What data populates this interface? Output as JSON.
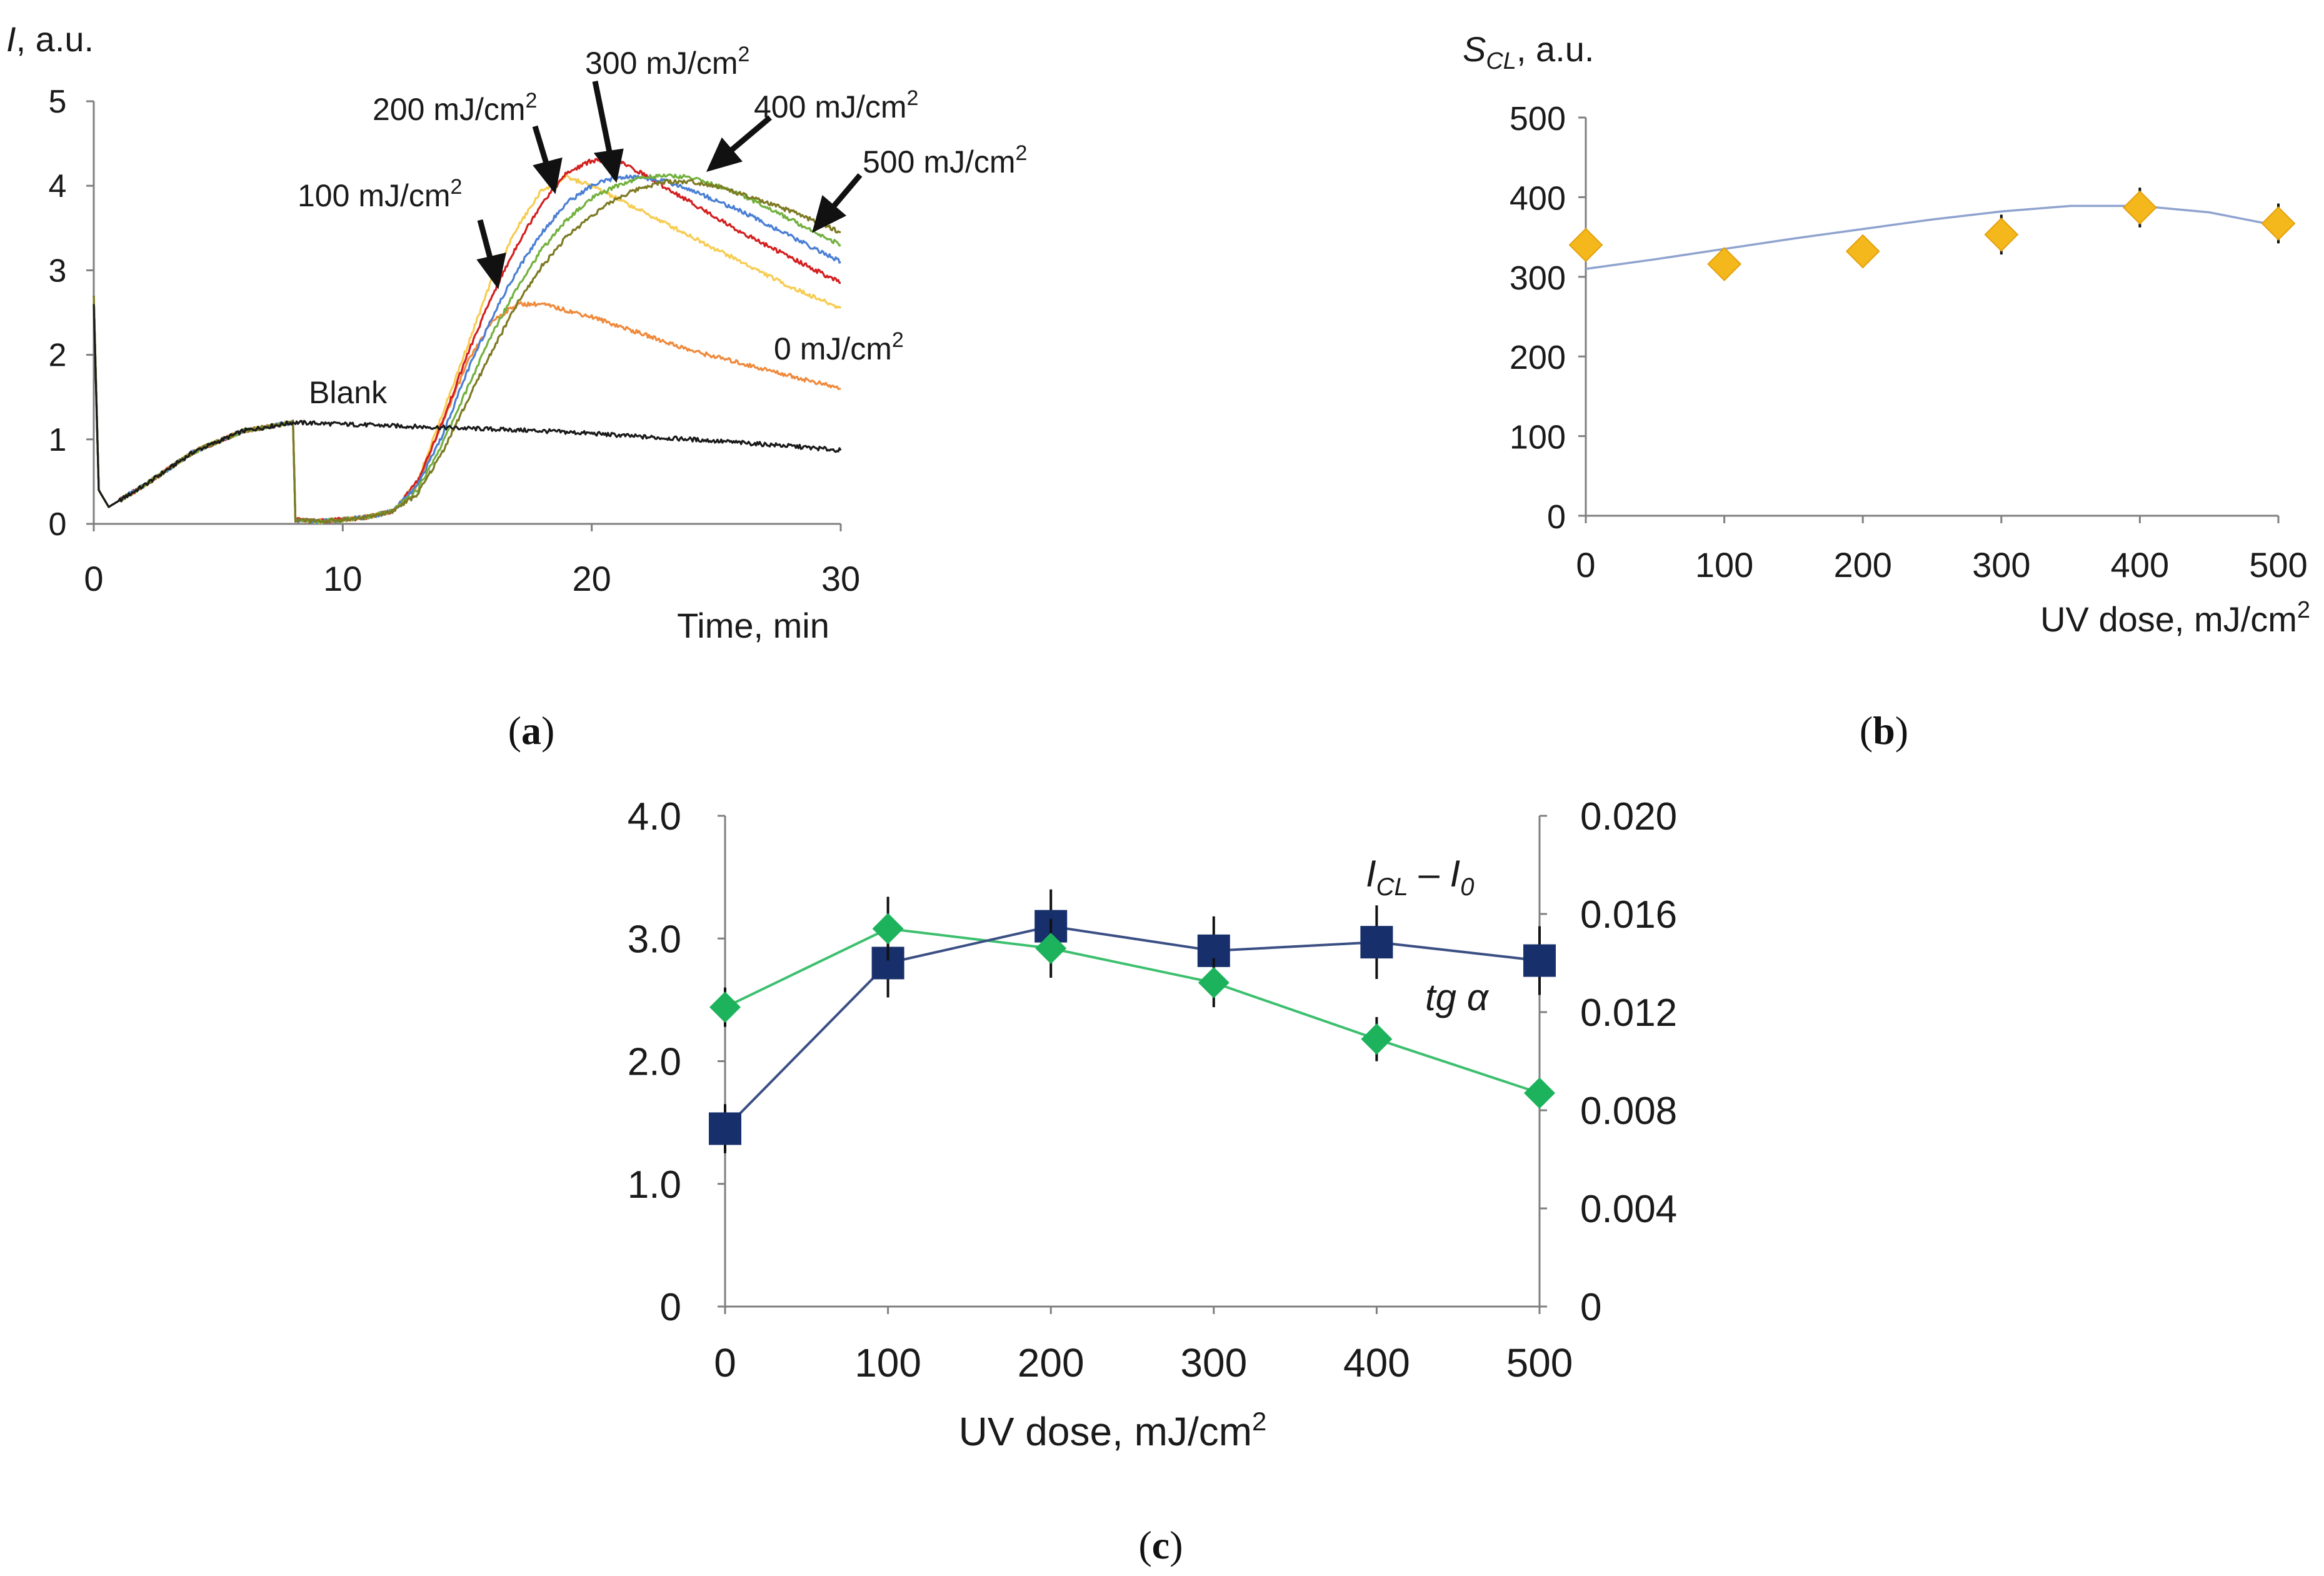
{
  "figure": {
    "colors": {
      "axis": "#7f7f7f",
      "text": "#1a1a1a",
      "orange_marker": "#f5b81c",
      "fit_line": "#8fa3cf",
      "navy_marker": "#172f6b",
      "navy_line": "#3b4f84",
      "green_marker": "#1db35c",
      "green_line": "#3cbf6e",
      "blank": "#1a1a1a",
      "dose_0": "#ef8a3c",
      "dose_100": "#f7cc52",
      "dose_200": "#d41f1f",
      "dose_300": "#4a7fd4",
      "dose_400": "#72b13e",
      "dose_500": "#7d7a22"
    }
  },
  "chart_data": [
    {
      "id": "a",
      "caption": {
        "open": "(",
        "letter": "a",
        "close": ")"
      },
      "type": "line",
      "ylabel": {
        "symbol": "I",
        "rest": ", a.u."
      },
      "xlabel": "Time, min",
      "xlim": [
        0,
        30
      ],
      "ylim": [
        0,
        5
      ],
      "xticks": [
        "0",
        "10",
        "20",
        "30"
      ],
      "yticks": [
        "0",
        "1",
        "2",
        "3",
        "4",
        "5"
      ],
      "series": [
        {
          "name": "Blank",
          "color_key": "blank",
          "label": "Blank",
          "x": [
            0,
            0.2,
            0.6,
            2,
            4,
            6,
            8,
            10,
            12,
            14,
            16,
            18,
            20,
            22,
            24,
            26,
            28,
            30
          ],
          "y": [
            2.6,
            0.4,
            0.2,
            0.45,
            0.85,
            1.1,
            1.2,
            1.18,
            1.16,
            1.14,
            1.12,
            1.1,
            1.07,
            1.03,
            1.0,
            0.96,
            0.92,
            0.87
          ]
        },
        {
          "name": "0 mJ/cm2",
          "color_key": "dose_0",
          "label": {
            "value": "0",
            "unit": " mJ/cm",
            "sup": "2"
          },
          "x": [
            0,
            0.2,
            0.6,
            2,
            4,
            6,
            8,
            8.1,
            9,
            10,
            11,
            12,
            13,
            14,
            15,
            16,
            17,
            18,
            20,
            22,
            24,
            26,
            28,
            30
          ],
          "y": [
            2.7,
            0.4,
            0.2,
            0.45,
            0.85,
            1.1,
            1.2,
            0.05,
            0.03,
            0.05,
            0.08,
            0.15,
            0.45,
            1.2,
            1.9,
            2.4,
            2.6,
            2.6,
            2.45,
            2.25,
            2.05,
            1.9,
            1.75,
            1.6
          ]
        },
        {
          "name": "100 mJ/cm2",
          "color_key": "dose_100",
          "label": {
            "value": "100",
            "unit": " mJ/cm",
            "sup": "2"
          },
          "x": [
            0,
            0.2,
            0.6,
            2,
            4,
            6,
            8,
            8.1,
            9,
            10,
            11,
            12,
            13,
            14,
            15,
            16,
            17,
            18,
            19,
            20,
            22,
            24,
            26,
            28,
            30
          ],
          "y": [
            2.7,
            0.4,
            0.2,
            0.45,
            0.85,
            1.1,
            1.2,
            0.05,
            0.03,
            0.05,
            0.08,
            0.15,
            0.5,
            1.3,
            2.1,
            2.9,
            3.5,
            3.95,
            4.1,
            4.0,
            3.7,
            3.4,
            3.1,
            2.8,
            2.55
          ]
        },
        {
          "name": "200 mJ/cm2",
          "color_key": "dose_200",
          "label": {
            "value": "200",
            "unit": " mJ/cm",
            "sup": "2"
          },
          "x": [
            0,
            0.2,
            0.6,
            2,
            4,
            6,
            8,
            8.1,
            9,
            10,
            11,
            12,
            13,
            14,
            15,
            16,
            17,
            18,
            19,
            20,
            21,
            22,
            24,
            26,
            28,
            30
          ],
          "y": [
            2.7,
            0.4,
            0.2,
            0.45,
            0.85,
            1.1,
            1.2,
            0.05,
            0.03,
            0.05,
            0.08,
            0.15,
            0.5,
            1.2,
            2.0,
            2.7,
            3.3,
            3.8,
            4.15,
            4.3,
            4.3,
            4.15,
            3.8,
            3.45,
            3.15,
            2.85
          ]
        },
        {
          "name": "300 mJ/cm2",
          "color_key": "dose_300",
          "label": {
            "value": "300",
            "unit": " mJ/cm",
            "sup": "2"
          },
          "x": [
            0,
            0.2,
            0.6,
            2,
            4,
            6,
            8,
            8.1,
            9,
            10,
            11,
            12,
            13,
            14,
            15,
            16,
            17,
            18,
            19,
            20,
            21,
            22,
            23,
            24,
            26,
            28,
            30
          ],
          "y": [
            2.7,
            0.4,
            0.2,
            0.45,
            0.85,
            1.1,
            1.2,
            0.05,
            0.03,
            0.05,
            0.08,
            0.15,
            0.45,
            1.05,
            1.8,
            2.45,
            3.0,
            3.45,
            3.8,
            4.0,
            4.1,
            4.1,
            4.05,
            3.95,
            3.7,
            3.4,
            3.1
          ]
        },
        {
          "name": "400 mJ/cm2",
          "color_key": "dose_400",
          "label": {
            "value": "400",
            "unit": " mJ/cm",
            "sup": "2"
          },
          "x": [
            0,
            0.2,
            0.6,
            2,
            4,
            6,
            8,
            8.1,
            9,
            10,
            11,
            12,
            13,
            14,
            15,
            16,
            17,
            18,
            19,
            20,
            21,
            22,
            23,
            24,
            25,
            26,
            28,
            30
          ],
          "y": [
            2.7,
            0.4,
            0.2,
            0.45,
            0.85,
            1.1,
            1.2,
            0.05,
            0.03,
            0.05,
            0.08,
            0.15,
            0.4,
            0.95,
            1.6,
            2.25,
            2.8,
            3.25,
            3.6,
            3.85,
            4.0,
            4.1,
            4.12,
            4.1,
            4.0,
            3.9,
            3.6,
            3.3
          ]
        },
        {
          "name": "500 mJ/cm2",
          "color_key": "dose_500",
          "label": {
            "value": "500",
            "unit": " mJ/cm",
            "sup": "2"
          },
          "x": [
            0,
            0.2,
            0.6,
            2,
            4,
            6,
            8,
            8.1,
            9,
            10,
            11,
            12,
            13,
            14,
            15,
            16,
            17,
            18,
            19,
            20,
            21,
            22,
            23,
            24,
            25,
            26,
            28,
            30
          ],
          "y": [
            2.7,
            0.4,
            0.2,
            0.45,
            0.85,
            1.1,
            1.2,
            0.05,
            0.03,
            0.05,
            0.08,
            0.15,
            0.35,
            0.85,
            1.45,
            2.05,
            2.6,
            3.05,
            3.4,
            3.65,
            3.85,
            3.98,
            4.05,
            4.05,
            4.0,
            3.9,
            3.7,
            3.45
          ]
        }
      ]
    },
    {
      "id": "b",
      "caption": {
        "open": "(",
        "letter": "b",
        "close": ")"
      },
      "type": "scatter",
      "ylabel": {
        "symbol": "S",
        "sub": "CL",
        "rest": ", a.u."
      },
      "xlabel": {
        "text": "UV dose, mJ/cm",
        "sup": "2"
      },
      "xlim": [
        0,
        500
      ],
      "ylim": [
        0,
        500
      ],
      "xticks": [
        "0",
        "100",
        "200",
        "300",
        "400",
        "500"
      ],
      "yticks": [
        "0",
        "100",
        "200",
        "300",
        "400",
        "500"
      ],
      "points": {
        "x": [
          0,
          100,
          200,
          300,
          400,
          500
        ],
        "y": [
          340,
          316,
          332,
          353,
          387,
          367
        ],
        "err": [
          20,
          20,
          20,
          25,
          25,
          25
        ]
      },
      "fit": {
        "x": [
          0,
          50,
          100,
          150,
          200,
          250,
          300,
          350,
          400,
          450,
          500
        ],
        "y": [
          310,
          322,
          335,
          348,
          360,
          372,
          382,
          389,
          389,
          381,
          364
        ]
      }
    },
    {
      "id": "c",
      "caption": {
        "open": "(",
        "letter": "c",
        "close": ")"
      },
      "type": "line",
      "xlabel": {
        "text": "UV dose, mJ/cm",
        "sup": "2"
      },
      "xlim": [
        0,
        500
      ],
      "ylim_left": [
        0,
        4
      ],
      "ylim_right": [
        0,
        0.02
      ],
      "xticks": [
        "0",
        "100",
        "200",
        "300",
        "400",
        "500"
      ],
      "yticks_left": [
        "0",
        "1.0",
        "2.0",
        "3.0",
        "4.0"
      ],
      "yticks_right": [
        "0",
        "0.004",
        "0.008",
        "0.012",
        "0.016",
        "0.020"
      ],
      "series": [
        {
          "name": "I_CL − I_0",
          "axis": "left",
          "label": {
            "symbol": "I",
            "sub1": "CL",
            "dash": " – ",
            "symbol2": "I",
            "sub2": "0"
          },
          "x": [
            0,
            100,
            200,
            300,
            400,
            500
          ],
          "y": [
            1.45,
            2.8,
            3.1,
            2.9,
            2.97,
            2.82
          ],
          "err": [
            0.2,
            0.28,
            0.3,
            0.28,
            0.3,
            0.28
          ]
        },
        {
          "name": "tg α",
          "axis": "right",
          "label": "tg α",
          "x": [
            0,
            100,
            200,
            300,
            400,
            500
          ],
          "y": [
            0.0122,
            0.0154,
            0.0146,
            0.0132,
            0.0109,
            0.0087
          ],
          "err": [
            0.0008,
            0.0013,
            0.0012,
            0.001,
            0.0009,
            0.0004
          ]
        }
      ]
    }
  ]
}
